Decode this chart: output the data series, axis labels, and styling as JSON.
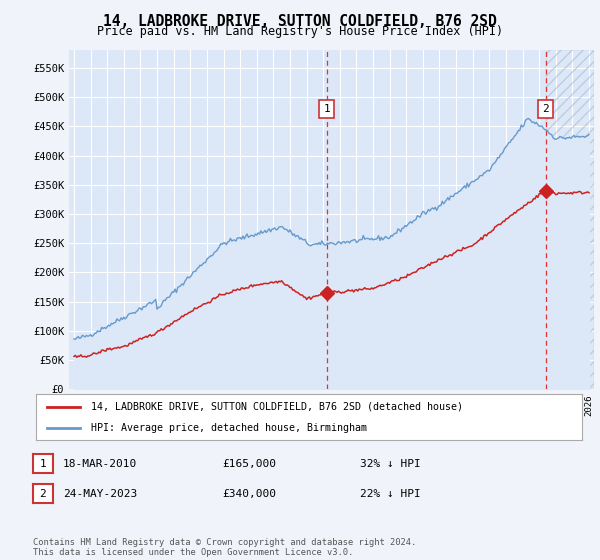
{
  "title": "14, LADBROKE DRIVE, SUTTON COLDFIELD, B76 2SD",
  "subtitle": "Price paid vs. HM Land Registry's House Price Index (HPI)",
  "ylim": [
    0,
    580000
  ],
  "yticks": [
    0,
    50000,
    100000,
    150000,
    200000,
    250000,
    300000,
    350000,
    400000,
    450000,
    500000,
    550000
  ],
  "ytick_labels": [
    "£0",
    "£50K",
    "£100K",
    "£150K",
    "£200K",
    "£250K",
    "£300K",
    "£350K",
    "£400K",
    "£450K",
    "£500K",
    "£550K"
  ],
  "fig_bg_color": "#f0f4fa",
  "plot_bg_color": "#dce8f8",
  "grid_color": "#ffffff",
  "hpi_color": "#6699cc",
  "price_color": "#cc2222",
  "marker1_date": 2010.21,
  "marker2_date": 2023.39,
  "marker1_price": 165000,
  "marker2_price": 340000,
  "vline_color": "#dd3333",
  "legend_label1": "14, LADBROKE DRIVE, SUTTON COLDFIELD, B76 2SD (detached house)",
  "legend_label2": "HPI: Average price, detached house, Birmingham",
  "table_row1": [
    "1",
    "18-MAR-2010",
    "£165,000",
    "32% ↓ HPI"
  ],
  "table_row2": [
    "2",
    "24-MAY-2023",
    "£340,000",
    "22% ↓ HPI"
  ],
  "footer": "Contains HM Land Registry data © Crown copyright and database right 2024.\nThis data is licensed under the Open Government Licence v3.0.",
  "xlim_left": 1994.7,
  "xlim_right": 2026.3
}
